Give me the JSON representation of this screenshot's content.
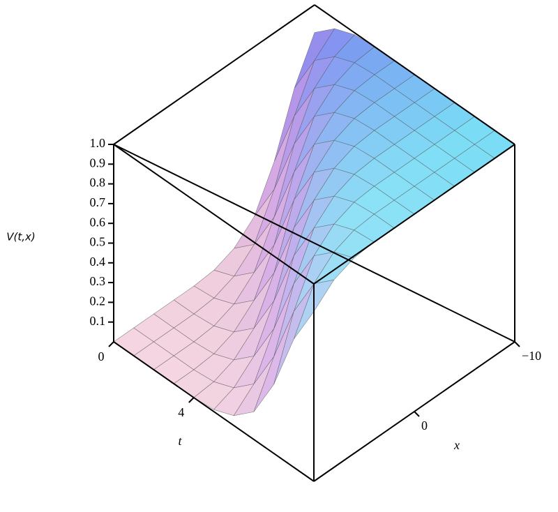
{
  "chart_data": {
    "type": "surface",
    "xlabel": "x",
    "ylabel": "t",
    "zlabel": "V(t,x)",
    "x": [
      -10,
      -8,
      -6,
      -4,
      -2,
      0,
      2,
      4,
      6,
      8,
      10
    ],
    "y": [
      0,
      1,
      2,
      3,
      4,
      5,
      6,
      7,
      8,
      9,
      10
    ],
    "z": [
      [
        0.86,
        0.65,
        0.35,
        0.14,
        0.05,
        0.01,
        0,
        0,
        0,
        0,
        0
      ],
      [
        0.95,
        0.86,
        0.65,
        0.35,
        0.14,
        0.05,
        0.01,
        0,
        0,
        0,
        0
      ],
      [
        0.99,
        0.95,
        0.86,
        0.65,
        0.35,
        0.14,
        0.05,
        0.01,
        0,
        0,
        0
      ],
      [
        1,
        0.99,
        0.95,
        0.86,
        0.65,
        0.35,
        0.14,
        0.05,
        0.01,
        0,
        0
      ],
      [
        1,
        1,
        0.99,
        0.95,
        0.86,
        0.65,
        0.35,
        0.14,
        0.05,
        0.01,
        0
      ],
      [
        1,
        1,
        1,
        0.99,
        0.95,
        0.86,
        0.65,
        0.35,
        0.14,
        0.05,
        0.01
      ],
      [
        1,
        1,
        1,
        1,
        0.99,
        0.95,
        0.86,
        0.65,
        0.35,
        0.14,
        0.05
      ],
      [
        1,
        1,
        1,
        1,
        1,
        0.99,
        0.95,
        0.86,
        0.65,
        0.35,
        0.14
      ],
      [
        1,
        1,
        1,
        1,
        1,
        1,
        0.99,
        0.95,
        0.86,
        0.65,
        0.35
      ],
      [
        1,
        1,
        1,
        1,
        1,
        1,
        1,
        0.99,
        0.95,
        0.86,
        0.65
      ],
      [
        1,
        1,
        1,
        1,
        1,
        1,
        1,
        1,
        0.99,
        0.95,
        0.86
      ]
    ],
    "xlim": [
      -10,
      10
    ],
    "ylim": [
      0,
      10
    ],
    "zlim": [
      0,
      1
    ],
    "xticks": [
      {
        "value": -10,
        "label": "−10"
      },
      0
    ],
    "yticks": [
      0,
      4
    ],
    "zticks": [
      0.1,
      0.2,
      0.3,
      0.4,
      0.5,
      0.6,
      0.7,
      0.8,
      0.9,
      {
        "value": 1,
        "label": "1.0"
      }
    ]
  }
}
